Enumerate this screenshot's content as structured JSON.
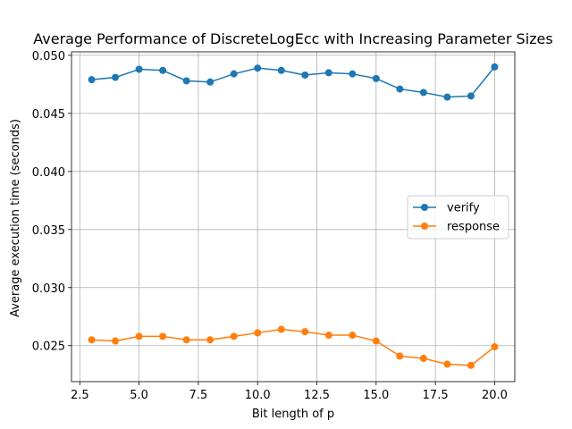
{
  "chart_data": {
    "type": "line",
    "title": "Average Performance of DiscreteLogEcc with Increasing Parameter Sizes",
    "xlabel": "Bit length of p",
    "ylabel": "Average execution time (seconds)",
    "xlim": [
      2.15,
      20.85
    ],
    "ylim": [
      0.0219,
      0.0503
    ],
    "xticks": [
      2.5,
      5.0,
      7.5,
      10.0,
      12.5,
      15.0,
      17.5,
      20.0
    ],
    "xtick_labels": [
      "2.5",
      "5.0",
      "7.5",
      "10.0",
      "12.5",
      "15.0",
      "17.5",
      "20.0"
    ],
    "yticks": [
      0.025,
      0.03,
      0.035,
      0.04,
      0.045,
      0.05
    ],
    "ytick_labels": [
      "0.025",
      "0.030",
      "0.035",
      "0.040",
      "0.045",
      "0.050"
    ],
    "grid": true,
    "legend_position": "center-right",
    "x": [
      3,
      4,
      5,
      6,
      7,
      8,
      9,
      10,
      11,
      12,
      13,
      14,
      15,
      16,
      17,
      18,
      19,
      20
    ],
    "series": [
      {
        "name": "verify",
        "color": "#1f77b4",
        "marker": "circle",
        "values": [
          0.0479,
          0.0481,
          0.0488,
          0.0487,
          0.0478,
          0.0477,
          0.0484,
          0.0489,
          0.0487,
          0.0483,
          0.0485,
          0.0484,
          0.048,
          0.0471,
          0.0468,
          0.0464,
          0.0465,
          0.049
        ]
      },
      {
        "name": "response",
        "color": "#ff7f0e",
        "marker": "circle",
        "values": [
          0.0255,
          0.0254,
          0.0258,
          0.0258,
          0.0255,
          0.0255,
          0.0258,
          0.0261,
          0.0264,
          0.0262,
          0.0259,
          0.0259,
          0.0254,
          0.0241,
          0.0239,
          0.0234,
          0.0233,
          0.0249
        ]
      }
    ]
  }
}
